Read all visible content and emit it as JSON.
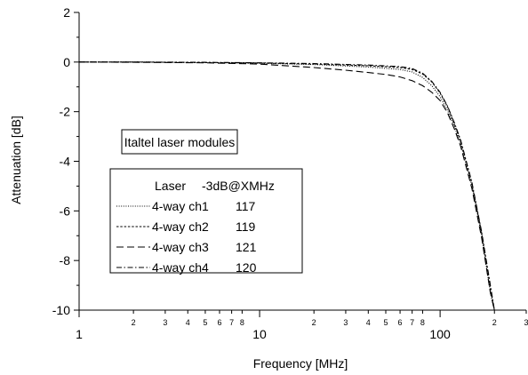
{
  "chart_data": {
    "type": "line",
    "xlabel": "Frequency [MHz]",
    "ylabel": "Attenuation [dB]",
    "x_scale": "log",
    "xlim": [
      1,
      300
    ],
    "ylim": [
      -10,
      2
    ],
    "grid": false,
    "x_major_ticks": [
      {
        "value": 1,
        "label": "1"
      },
      {
        "value": 10,
        "label": "10"
      },
      {
        "value": 100,
        "label": "100"
      }
    ],
    "x_minor_ticks": [
      {
        "value": 2,
        "label": "2"
      },
      {
        "value": 3,
        "label": "3"
      },
      {
        "value": 4,
        "label": "4"
      },
      {
        "value": 5,
        "label": "5"
      },
      {
        "value": 6,
        "label": "6"
      },
      {
        "value": 7,
        "label": "7"
      },
      {
        "value": 8,
        "label": "8"
      },
      {
        "value": 20,
        "label": "2"
      },
      {
        "value": 30,
        "label": "3"
      },
      {
        "value": 40,
        "label": "4"
      },
      {
        "value": 50,
        "label": "5"
      },
      {
        "value": 60,
        "label": "6"
      },
      {
        "value": 70,
        "label": "7"
      },
      {
        "value": 80,
        "label": "8"
      },
      {
        "value": 200,
        "label": "2"
      },
      {
        "value": 300,
        "label": "3"
      }
    ],
    "y_ticks": [
      {
        "value": 2,
        "label": "2"
      },
      {
        "value": 0,
        "label": "0"
      },
      {
        "value": -2,
        "label": "-2"
      },
      {
        "value": -4,
        "label": "-4"
      },
      {
        "value": -6,
        "label": "-6"
      },
      {
        "value": -8,
        "label": "-8"
      },
      {
        "value": -10,
        "label": "-10"
      }
    ],
    "annotation": "Italtel laser modules",
    "legend": {
      "placement": "center-left",
      "header_col1": "Laser",
      "header_col2": "-3dB@XMHz"
    },
    "series": [
      {
        "name": "4-way ch1",
        "value": "117",
        "dash": "1,1.6",
        "x": [
          1,
          2,
          5,
          10,
          20,
          40,
          60,
          70,
          80,
          90,
          100,
          110,
          120,
          130,
          150,
          170,
          190,
          200
        ],
        "y": [
          0,
          0,
          -0.02,
          -0.05,
          -0.1,
          -0.2,
          -0.3,
          -0.4,
          -0.62,
          -0.95,
          -1.4,
          -1.95,
          -2.6,
          -3.3,
          -5.0,
          -7.0,
          -9.3,
          -10
        ]
      },
      {
        "name": "4-way ch2",
        "value": "119",
        "dash": "2.5,1.8",
        "x": [
          1,
          2,
          5,
          10,
          20,
          40,
          60,
          70,
          80,
          90,
          100,
          110,
          120,
          130,
          150,
          170,
          190,
          200
        ],
        "y": [
          0,
          0,
          -0.02,
          -0.04,
          -0.08,
          -0.15,
          -0.22,
          -0.3,
          -0.48,
          -0.8,
          -1.25,
          -1.8,
          -2.5,
          -3.2,
          -4.9,
          -6.9,
          -9.1,
          -10
        ]
      },
      {
        "name": "4-way ch3",
        "value": "121",
        "dash": "8,4",
        "x": [
          1,
          2,
          5,
          10,
          20,
          30,
          40,
          50,
          60,
          70,
          80,
          90,
          100,
          110,
          120,
          130,
          150,
          170,
          190,
          200
        ],
        "y": [
          0,
          -0.01,
          -0.03,
          -0.08,
          -0.22,
          -0.33,
          -0.42,
          -0.5,
          -0.6,
          -0.75,
          -0.95,
          -1.22,
          -1.55,
          -2.05,
          -2.7,
          -3.4,
          -5.1,
          -7.1,
          -9.3,
          -10
        ]
      },
      {
        "name": "4-way ch4",
        "value": "120",
        "dash": "6,2.5,1.5,2.5",
        "x": [
          1,
          2,
          5,
          10,
          20,
          40,
          60,
          70,
          80,
          90,
          100,
          110,
          120,
          130,
          150,
          170,
          190,
          200
        ],
        "y": [
          0,
          0,
          -0.01,
          -0.03,
          -0.06,
          -0.12,
          -0.18,
          -0.26,
          -0.45,
          -0.78,
          -1.22,
          -1.78,
          -2.45,
          -3.15,
          -4.85,
          -6.85,
          -9.0,
          -10
        ]
      }
    ]
  }
}
